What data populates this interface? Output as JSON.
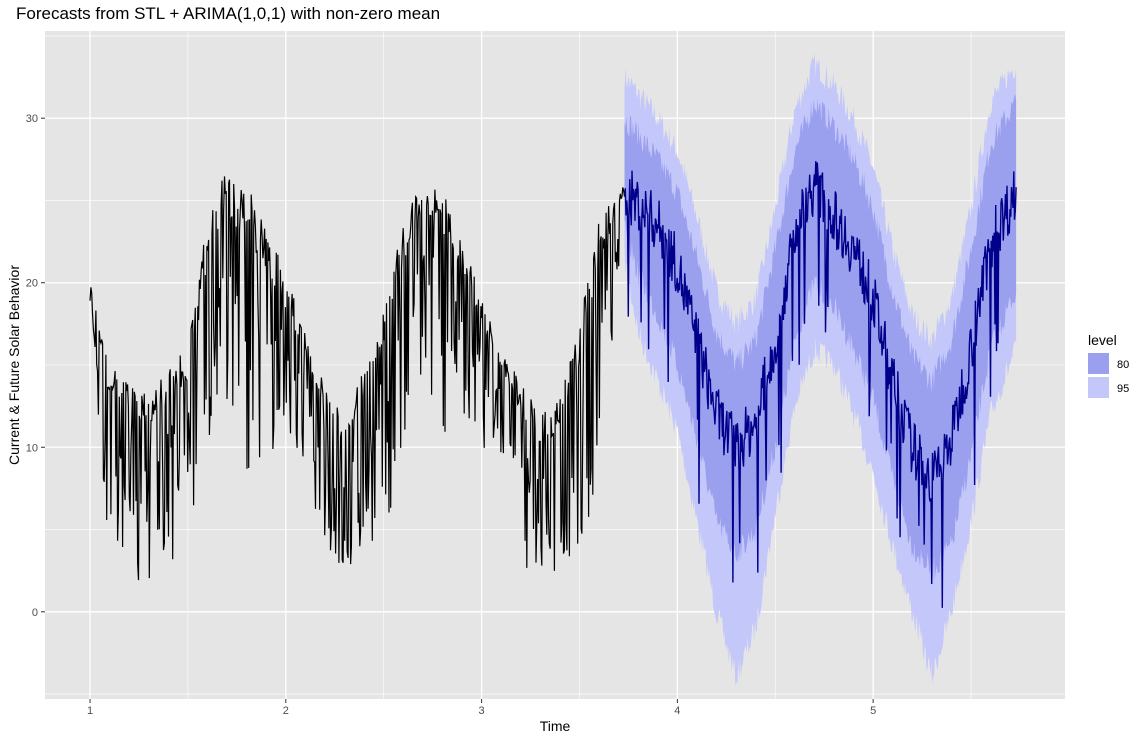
{
  "chart_data": {
    "type": "line",
    "title": "Forecasts from STL +  ARIMA(1,0,1) with non-zero mean",
    "xlabel": "Time",
    "ylabel": "Current & Future Solar Behavior",
    "xlim": [
      0.77,
      5.98
    ],
    "ylim": [
      -5.3,
      35.3
    ],
    "x_ticks": [
      1,
      2,
      3,
      4,
      5
    ],
    "y_ticks": [
      0,
      10,
      20,
      30
    ],
    "grid": true,
    "legend": {
      "title": "level",
      "position": "right",
      "entries": [
        {
          "label": "80",
          "color": "#9a9fee"
        },
        {
          "label": "95",
          "color": "#c4c7f9"
        }
      ]
    },
    "colors": {
      "panel": "#e5e5e5",
      "grid": "#ffffff",
      "history": "#000000",
      "forecast": "#00008b",
      "band80": "#9a9fee",
      "band95": "#c4c7f9"
    },
    "series": [
      {
        "role": "history",
        "x": [
          1.0,
          1.1,
          1.2,
          1.3,
          1.4,
          1.5,
          1.6,
          1.7,
          1.8,
          1.9,
          2.0,
          2.1,
          2.2,
          2.3,
          2.4,
          2.5,
          2.6,
          2.7,
          2.8,
          2.9,
          3.0,
          3.1,
          3.2,
          3.3,
          3.4,
          3.5,
          3.6,
          3.73
        ],
        "upper": [
          20.2,
          15.0,
          13.8,
          13.2,
          15.0,
          16.0,
          24.0,
          27.0,
          26.0,
          23.5,
          20.5,
          17.0,
          14.0,
          12.0,
          15.0,
          19.0,
          24.0,
          26.8,
          25.5,
          23.0,
          19.0,
          16.0,
          14.0,
          12.0,
          13.0,
          17.5,
          24.0,
          26.0
        ],
        "lower": [
          18.5,
          3.0,
          1.8,
          1.2,
          2.5,
          4.0,
          6.5,
          10.5,
          7.0,
          6.8,
          9.2,
          8.0,
          4.5,
          1.2,
          4.0,
          4.5,
          8.5,
          14.0,
          10.5,
          11.0,
          10.0,
          9.5,
          3.0,
          1.2,
          2.0,
          3.5,
          6.5,
          24.5
        ]
      },
      {
        "role": "forecast",
        "x": [
          3.73,
          3.8,
          3.9,
          4.0,
          4.1,
          4.2,
          4.3,
          4.4,
          4.5,
          4.6,
          4.7,
          4.8,
          4.9,
          5.0,
          5.1,
          5.2,
          5.3,
          5.4,
          5.5,
          5.6,
          5.73
        ],
        "mean": [
          25.5,
          24.8,
          23.5,
          21.0,
          16.5,
          12.0,
          10.0,
          11.5,
          16.5,
          23.0,
          26.0,
          24.0,
          22.0,
          19.0,
          14.0,
          10.0,
          8.0,
          10.5,
          16.0,
          22.5,
          25.5
        ],
        "lo80": [
          23.5,
          20.5,
          18.0,
          15.0,
          10.5,
          5.5,
          3.5,
          5.0,
          10.0,
          16.5,
          20.0,
          18.5,
          16.0,
          13.0,
          8.0,
          4.0,
          2.5,
          4.0,
          9.5,
          16.0,
          19.5
        ],
        "hi80": [
          30.0,
          29.0,
          27.5,
          25.5,
          21.5,
          17.0,
          15.0,
          16.5,
          22.0,
          28.0,
          31.0,
          29.5,
          27.5,
          24.5,
          19.5,
          15.5,
          14.0,
          16.5,
          22.0,
          28.5,
          31.0
        ],
        "lo95": [
          21.5,
          17.0,
          14.0,
          11.0,
          5.5,
          0.0,
          -4.0,
          -1.0,
          6.0,
          12.5,
          16.0,
          15.0,
          12.0,
          8.5,
          4.0,
          0.0,
          -4.0,
          0.0,
          5.5,
          12.0,
          16.0
        ],
        "hi95": [
          32.5,
          31.5,
          30.0,
          28.0,
          24.0,
          19.5,
          17.5,
          19.0,
          24.5,
          30.5,
          33.3,
          32.0,
          30.0,
          27.0,
          22.0,
          18.0,
          16.5,
          19.0,
          24.5,
          31.0,
          33.3
        ]
      }
    ]
  }
}
